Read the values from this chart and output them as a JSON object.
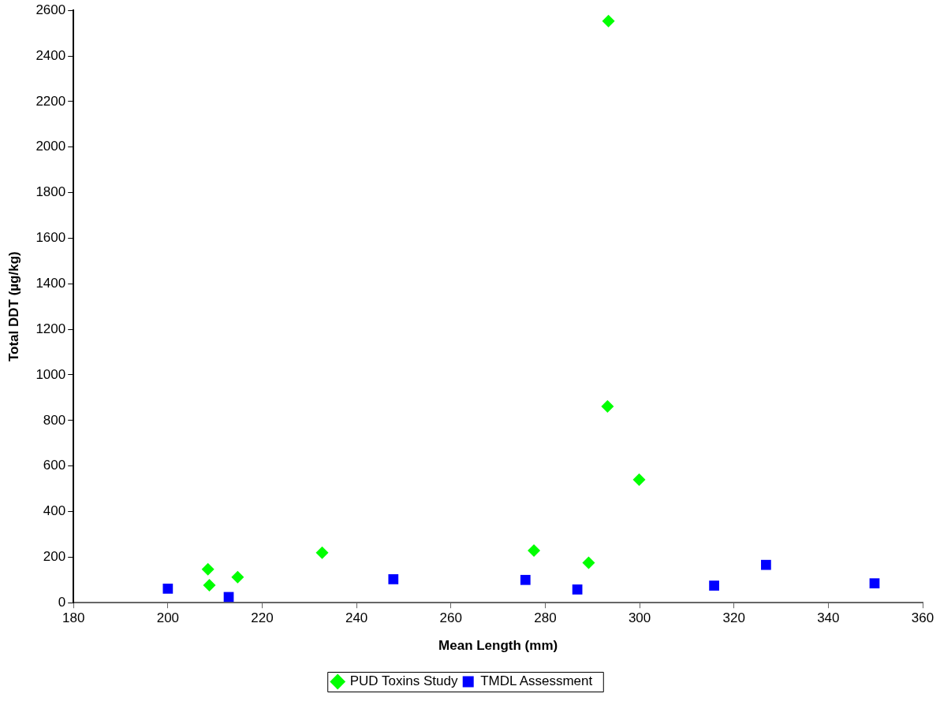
{
  "chart_data": {
    "type": "scatter",
    "xlabel": "Mean Length (mm)",
    "ylabel": "Total DDT (µg/kg)",
    "xlim": [
      180,
      360
    ],
    "xticks": [
      180,
      200,
      220,
      240,
      260,
      280,
      300,
      320,
      340,
      360
    ],
    "ylim": [
      0,
      2600
    ],
    "yticks": [
      0,
      200,
      400,
      600,
      800,
      1000,
      1200,
      1400,
      1600,
      1800,
      2000,
      2200,
      2400,
      2600
    ],
    "grid": false,
    "legend": "bottom",
    "series": [
      {
        "name": "PUD Toxins Study",
        "color": "#00ff00",
        "marker": "diamond",
        "x": [
          208.5,
          208.8,
          214.8,
          232.7,
          277.6,
          289.2,
          293.4,
          293.2,
          299.9
        ],
        "values": [
          147,
          77,
          112,
          219,
          229,
          175,
          2553,
          862,
          540
        ]
      },
      {
        "name": "TMDL Assessment",
        "color": "#0000ff",
        "marker": "square",
        "x": [
          200,
          212.9,
          247.8,
          275.8,
          286.8,
          315.8,
          326.8,
          349.8
        ],
        "values": [
          62,
          25,
          103,
          100,
          58,
          75,
          166,
          85
        ]
      }
    ]
  }
}
